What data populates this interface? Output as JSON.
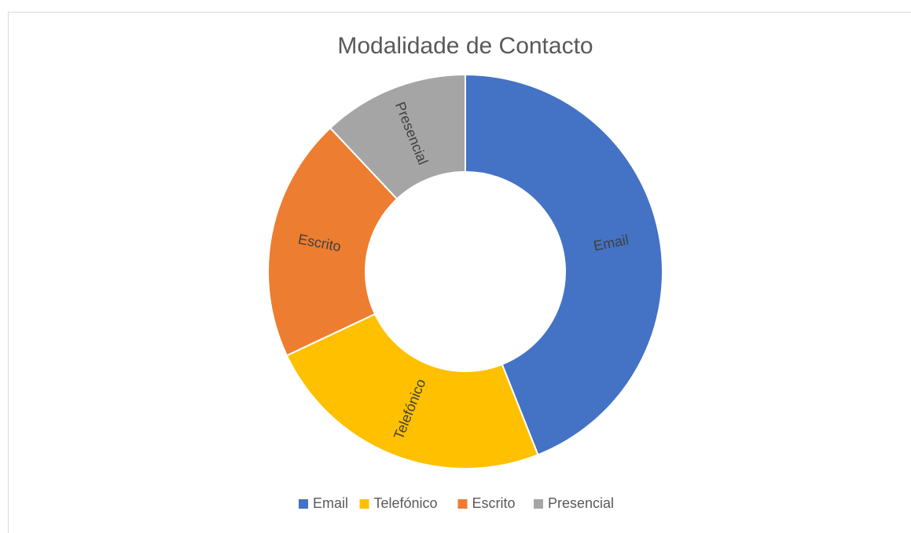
{
  "chart_data": {
    "type": "donut",
    "title": "Modalidade de Contacto",
    "categories": [
      "Email",
      "Telefónico",
      "Escrito",
      "Presencial"
    ],
    "values": [
      44,
      24,
      20,
      12
    ],
    "colors": [
      "#4472c4",
      "#ffc000",
      "#ed7d31",
      "#a5a5a5"
    ],
    "legend": "bottom"
  }
}
